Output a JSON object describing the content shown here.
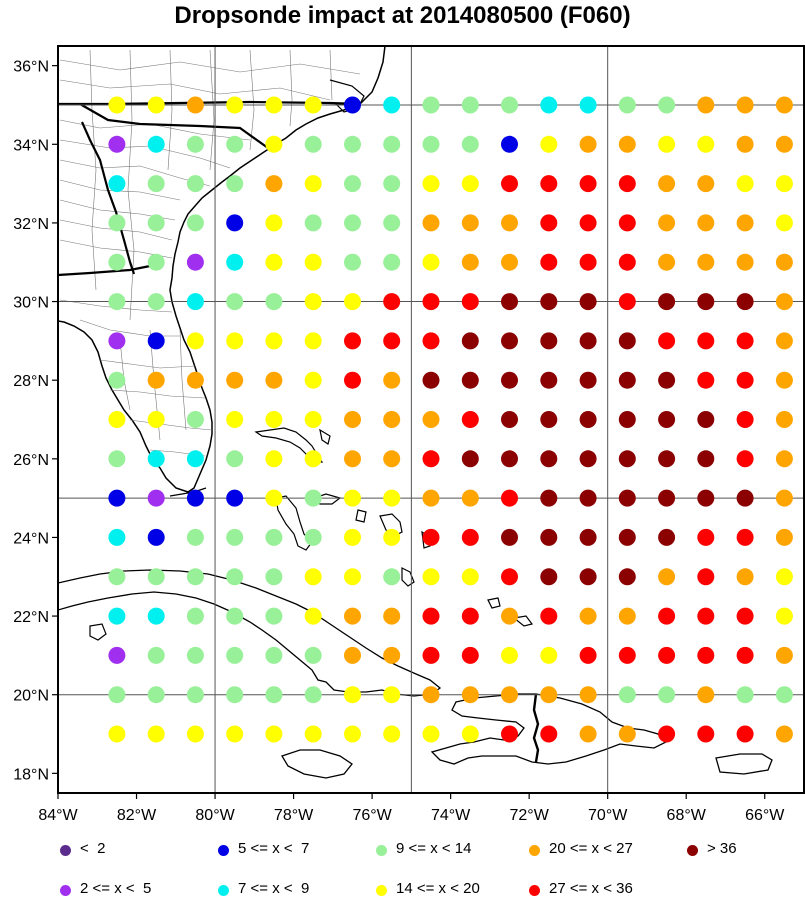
{
  "title": "Dropsonde impact at 2014080500 (F060)",
  "map_data": {
    "lon_range": [
      -84,
      -65
    ],
    "lat_range": [
      17.5,
      36.5
    ],
    "lon_ticks": [
      {
        "v": -84,
        "label": "84°W"
      },
      {
        "v": -82,
        "label": "82°W"
      },
      {
        "v": -80,
        "label": "80°W"
      },
      {
        "v": -78,
        "label": "78°W"
      },
      {
        "v": -76,
        "label": "76°W"
      },
      {
        "v": -74,
        "label": "74°W"
      },
      {
        "v": -72,
        "label": "72°W"
      },
      {
        "v": -70,
        "label": "70°W"
      },
      {
        "v": -68,
        "label": "68°W"
      },
      {
        "v": -66,
        "label": "66°W"
      }
    ],
    "lat_ticks": [
      {
        "v": 18,
        "label": "18°N"
      },
      {
        "v": 20,
        "label": "20°N"
      },
      {
        "v": 22,
        "label": "22°N"
      },
      {
        "v": 24,
        "label": "24°N"
      },
      {
        "v": 26,
        "label": "26°N"
      },
      {
        "v": 28,
        "label": "28°N"
      },
      {
        "v": 30,
        "label": "30°N"
      },
      {
        "v": 32,
        "label": "32°N"
      },
      {
        "v": 34,
        "label": "34°N"
      },
      {
        "v": 36,
        "label": "36°N"
      }
    ],
    "grid_lons": [
      -80,
      -75,
      -70
    ],
    "grid_lats": [
      20,
      25,
      30,
      35
    ],
    "classes": [
      {
        "key": "a",
        "label": "<  2",
        "color": "#5b2c8e"
      },
      {
        "key": "b",
        "label": "2 <= x <  5",
        "color": "#a02ff0"
      },
      {
        "key": "c",
        "label": "5 <= x <  7",
        "color": "#0000e6"
      },
      {
        "key": "d",
        "label": "7 <= x <  9",
        "color": "#00f0f0"
      },
      {
        "key": "e",
        "label": "9 <= x < 14",
        "color": "#98f098"
      },
      {
        "key": "f",
        "label": "14 <= x < 20",
        "color": "#ffff00"
      },
      {
        "key": "g",
        "label": "20 <= x < 27",
        "color": "#ffa500"
      },
      {
        "key": "h",
        "label": "27 <= x < 36",
        "color": "#ff0000"
      },
      {
        "key": "i",
        "label": "> 36",
        "color": "#8b0000"
      }
    ],
    "grid_lon_start": -82.5,
    "grid_lon_step": 1,
    "grid_lat_start": 35,
    "grid_lat_step": -1,
    "rows": [
      "ffgfffcdeeeddeegggffddcc",
      "bdeefeeeeecfggffggggebcc",
      "deeegfeeffhhhhggffddeda",
      "eeecfeeeggghhhgggfeeedd",
      "eebdffeefgghhhggggfffffb",
      "eedeeffhhhiiihiiigfgfgfb",
      "bcffffhhhiiiiihhhgfhfggg",
      "eggggfhgiiiiiiihhggffgff",
      "ffefffggghiiiiiihggfgfge",
      "eddeffgghiiiiiiihgggffge",
      "cbccfeffgghiiiiiigfgggfe",
      "dceeeeffhhiiiiihhgfgfggf",
      "eeeeeffeffhiiighgfggggfg",
      "ddeeefgghhghgghhhffgfggh",
      "beeeeegghhffhhhhhgfgfggh",
      "eeeeeeffgggggeegeegfgggg",
      "ffffffffffhhgghhhgfffggg"
    ]
  }
}
